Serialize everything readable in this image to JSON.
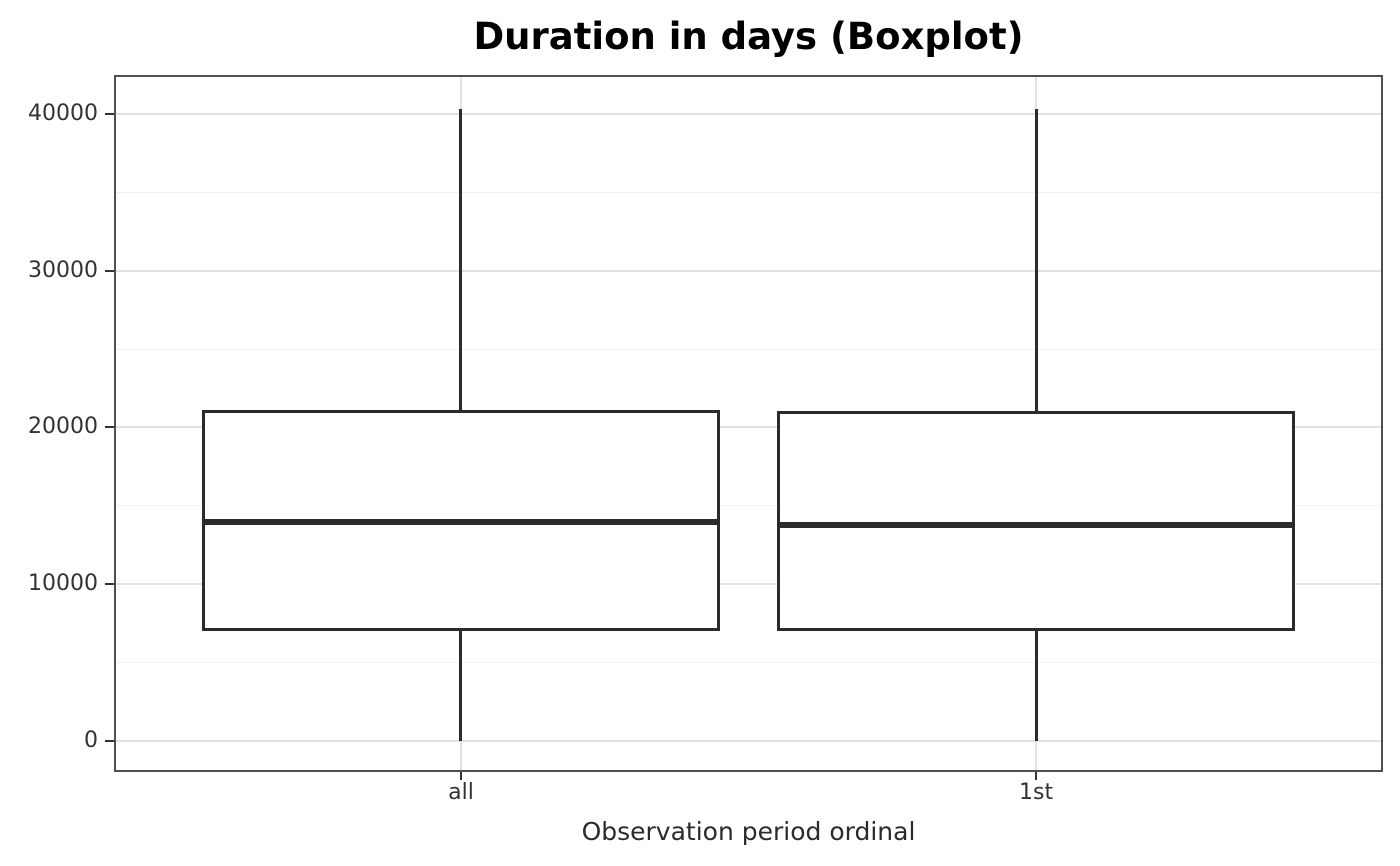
{
  "chart_data": {
    "type": "boxplot",
    "title": "Duration in days (Boxplot)",
    "xlabel": "Observation period ordinal",
    "ylabel": "",
    "categories": [
      "all",
      "1st"
    ],
    "series": [
      {
        "name": "all",
        "min": 0,
        "q1": 7150,
        "median": 13950,
        "q3": 21000,
        "max": 40300,
        "outliers": []
      },
      {
        "name": "1st",
        "min": 0,
        "q1": 7150,
        "median": 13800,
        "q3": 20950,
        "max": 40300,
        "outliers": []
      }
    ],
    "y_axis": {
      "ticks": [
        0,
        10000,
        20000,
        30000,
        40000
      ],
      "tick_labels": [
        "0",
        "10000",
        "20000",
        "30000",
        "40000"
      ],
      "minor_ticks": [
        5000,
        15000,
        25000,
        35000
      ],
      "domain": [
        -1840,
        42350
      ]
    },
    "x_axis": {
      "positions": [
        0.2727,
        0.7273
      ],
      "box_width_frac": 0.409
    },
    "grid": "horizontal major+minor, vertical major at categories",
    "legend": false,
    "colors": {
      "background": "#ffffff",
      "panel_background": "#ffffff",
      "panel_border": "#4f4f4f",
      "grid_major": "#e2e2e2",
      "grid_minor": "#f0f0f0",
      "box_stroke": "#2b2b2b",
      "box_fill": "#ffffff",
      "median": "#2b2b2b",
      "tick_mark": "#333333",
      "tick_label": "#333333",
      "title": "#000000",
      "axis_title": "#2b2b2b"
    }
  }
}
